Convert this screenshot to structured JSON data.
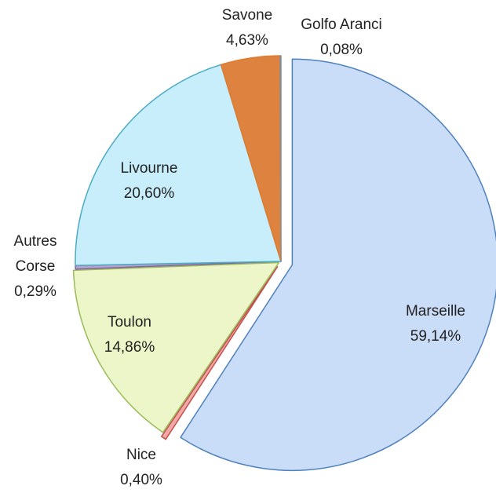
{
  "chart_data": {
    "type": "pie",
    "categories": [
      "Marseille",
      "Nice",
      "Toulon",
      "Autres Corse",
      "Livourne",
      "Savone",
      "Golfo Aranci"
    ],
    "values": [
      59.14,
      0.4,
      14.86,
      0.29,
      20.6,
      4.63,
      0.08
    ],
    "value_labels": [
      "59,14%",
      "0,40%",
      "14,86%",
      "0,29%",
      "20,60%",
      "4,63%",
      "0,08%"
    ],
    "colors": [
      "#c9dcf8",
      "#f2a9a6",
      "#ecf6c8",
      "#b4a4ca",
      "#c8eefb",
      "#de8240",
      "#bfbfbf"
    ],
    "stroke_colors": [
      "#4f81bd",
      "#c0504d",
      "#9bbb59",
      "#8064a2",
      "#4bacc6",
      "#e07b2a",
      "#8c8c8c"
    ]
  }
}
